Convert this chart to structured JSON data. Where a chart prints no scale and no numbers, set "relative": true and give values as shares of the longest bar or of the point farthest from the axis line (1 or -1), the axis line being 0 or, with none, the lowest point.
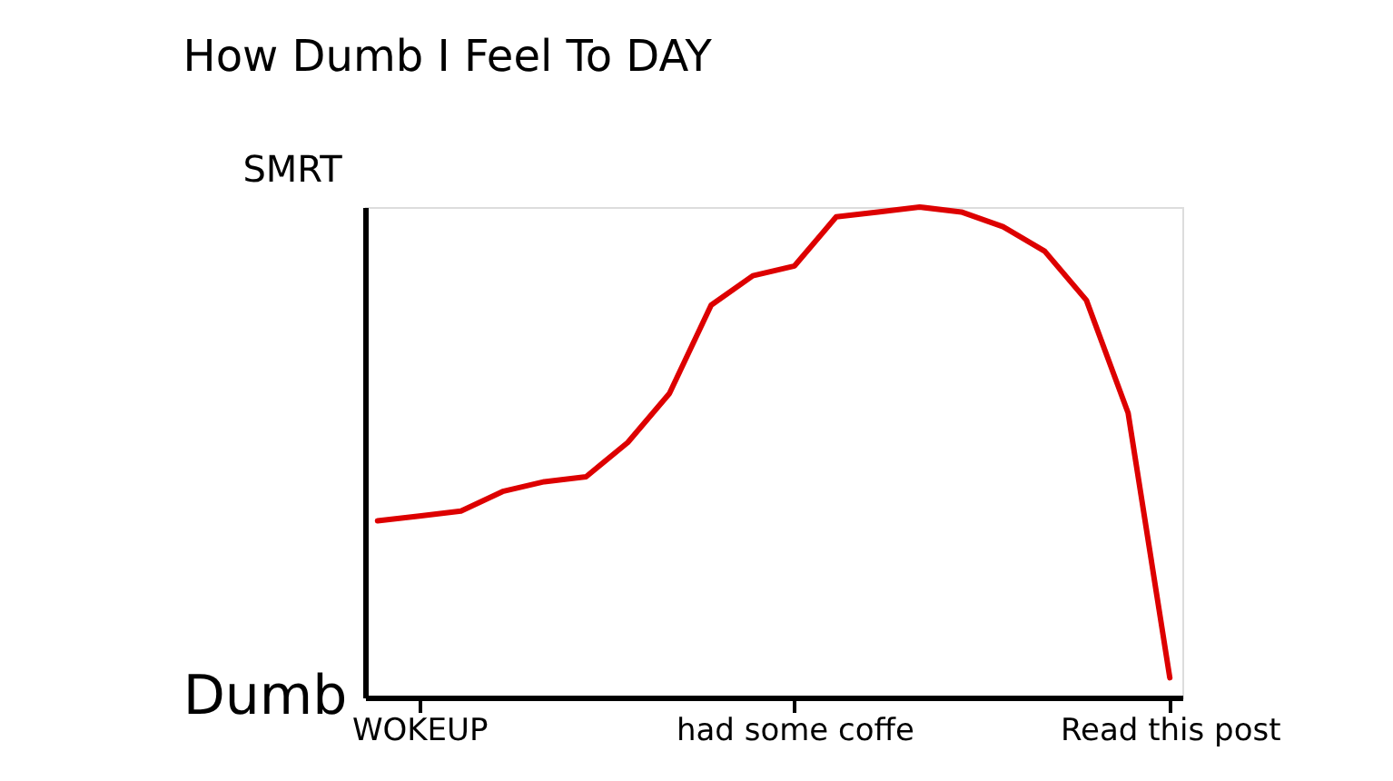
{
  "chart_data": {
    "type": "line",
    "title": "How Dumb I Feel To DAY",
    "relative": true,
    "categories": [
      null,
      "WOKEUP",
      null,
      null,
      null,
      null,
      null,
      null,
      null,
      null,
      "had some coffe",
      null,
      null,
      null,
      null,
      null,
      null,
      null,
      null,
      "Read this post"
    ],
    "series": [
      {
        "color": "#dd0000",
        "values": [
          0.36,
          0.37,
          0.38,
          0.42,
          0.44,
          0.45,
          0.52,
          0.62,
          0.8,
          0.86,
          0.88,
          0.98,
          0.99,
          1,
          0.99,
          0.96,
          0.91,
          0.81,
          0.58,
          0.04
        ]
      }
    ],
    "annotations": [
      "SMRT",
      "Dumb"
    ],
    "grid": false,
    "legend": false,
    "marker": "none",
    "line_style": "solid"
  }
}
